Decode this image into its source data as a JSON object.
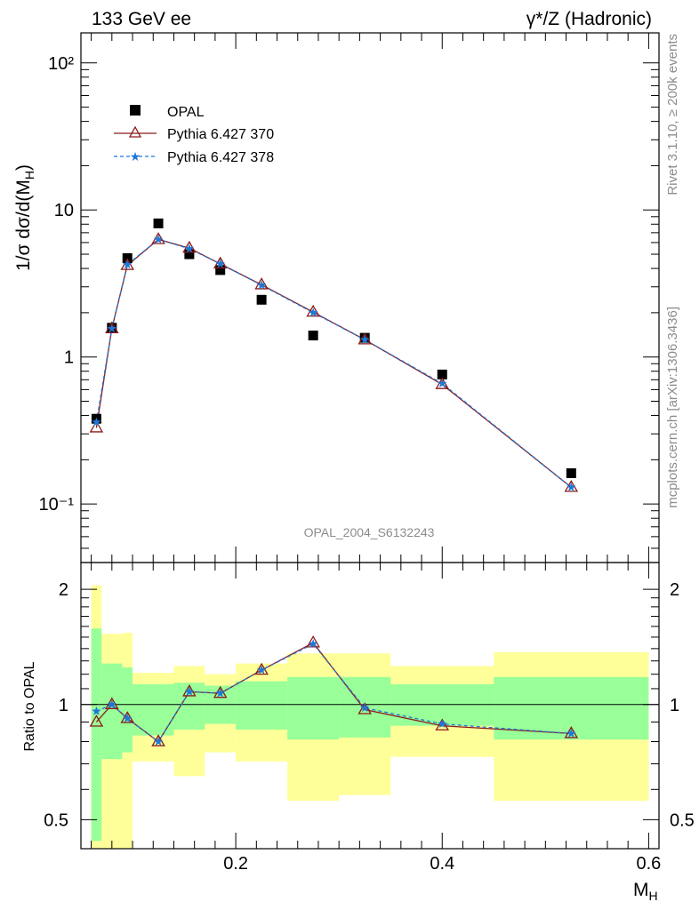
{
  "header": {
    "left": "133 GeV ee",
    "right": "γ*/Z (Hadronic)"
  },
  "side_text": {
    "rivet": "Rivet 3.1.10, ≥ 200k events",
    "mcplots": "mcplots.cern.ch [arXiv:1306.3436]"
  },
  "watermark": "OPAL_2004_S6132243",
  "colors": {
    "data": "#000000",
    "pythia370": "#8b1a1a",
    "pythia378": "#1f78d8",
    "band_inner": "#99ff99",
    "band_outer": "#ffff99"
  },
  "chart_data": [
    {
      "type": "scatter",
      "panel": "main",
      "ylabel": "1/σ dσ/d(M_H)",
      "yscale": "log",
      "xlim": [
        0.05,
        0.61
      ],
      "ylim": [
        0.04,
        160
      ],
      "y_ticks": [
        {
          "value": 0.1,
          "label": "10⁻¹"
        },
        {
          "value": 1,
          "label": "1"
        },
        {
          "value": 10,
          "label": "10"
        },
        {
          "value": 100,
          "label": "10²"
        }
      ],
      "legend_placement": "top-left",
      "series": [
        {
          "name": "OPAL",
          "style": "square",
          "x": [
            0.065,
            0.08,
            0.095,
            0.125,
            0.155,
            0.185,
            0.225,
            0.275,
            0.325,
            0.4,
            0.525
          ],
          "y": [
            0.38,
            1.58,
            4.7,
            8.1,
            5.0,
            3.9,
            2.45,
            1.4,
            1.35,
            0.76,
            0.162
          ]
        },
        {
          "name": "Pythia 6.427 370",
          "style": "line-triangle",
          "x": [
            0.065,
            0.08,
            0.095,
            0.125,
            0.155,
            0.185,
            0.225,
            0.275,
            0.325,
            0.4,
            0.525
          ],
          "y": [
            0.33,
            1.56,
            4.2,
            6.3,
            5.5,
            4.3,
            3.1,
            2.02,
            1.31,
            0.65,
            0.13
          ]
        },
        {
          "name": "Pythia 6.427 378",
          "style": "dashed-star",
          "x": [
            0.065,
            0.08,
            0.095,
            0.125,
            0.155,
            0.185,
            0.225,
            0.275,
            0.325,
            0.4,
            0.525
          ],
          "y": [
            0.36,
            1.56,
            4.25,
            6.3,
            5.45,
            4.3,
            3.08,
            2.0,
            1.31,
            0.66,
            0.13
          ]
        }
      ]
    },
    {
      "type": "line",
      "panel": "ratio",
      "xlabel": "M_H",
      "ylabel": "Ratio to OPAL",
      "yscale": "log",
      "xlim": [
        0.05,
        0.61
      ],
      "ylim": [
        0.42,
        2.35
      ],
      "x_ticks": [
        {
          "value": 0.2,
          "label": "0.2"
        },
        {
          "value": 0.4,
          "label": "0.4"
        },
        {
          "value": 0.6,
          "label": "0.6"
        }
      ],
      "y_ticks": [
        {
          "value": 0.5,
          "label": "0.5"
        },
        {
          "value": 1,
          "label": "1"
        },
        {
          "value": 2,
          "label": "2"
        }
      ],
      "bands": {
        "bins": [
          0.06,
          0.07,
          0.09,
          0.1,
          0.14,
          0.17,
          0.2,
          0.25,
          0.3,
          0.35,
          0.45,
          0.6
        ],
        "outer_lo": [
          0.4,
          0.36,
          0.37,
          0.71,
          0.65,
          0.75,
          0.71,
          0.56,
          0.58,
          0.73,
          0.56
        ],
        "outer_hi": [
          2.05,
          1.53,
          1.54,
          1.21,
          1.26,
          1.2,
          1.28,
          1.36,
          1.36,
          1.26,
          1.37
        ],
        "inner_lo": [
          0.44,
          0.72,
          0.75,
          0.83,
          0.86,
          0.89,
          0.86,
          0.81,
          0.82,
          0.88,
          0.81
        ],
        "inner_hi": [
          1.58,
          1.28,
          1.25,
          1.13,
          1.14,
          1.12,
          1.15,
          1.18,
          1.18,
          1.13,
          1.18
        ]
      },
      "series": [
        {
          "name": "Pythia 6.427 370",
          "style": "line-triangle",
          "x": [
            0.065,
            0.08,
            0.095,
            0.125,
            0.155,
            0.185,
            0.225,
            0.275,
            0.325,
            0.4,
            0.525
          ],
          "y": [
            0.9,
            1.0,
            0.92,
            0.8,
            1.08,
            1.07,
            1.23,
            1.45,
            0.97,
            0.88,
            0.84
          ]
        },
        {
          "name": "Pythia 6.427 378",
          "style": "dashed-star",
          "x": [
            0.065,
            0.08,
            0.095,
            0.125,
            0.155,
            0.185,
            0.225,
            0.275,
            0.325,
            0.4,
            0.525
          ],
          "y": [
            0.96,
            1.0,
            0.92,
            0.8,
            1.08,
            1.07,
            1.23,
            1.44,
            0.98,
            0.89,
            0.84
          ]
        }
      ]
    }
  ]
}
